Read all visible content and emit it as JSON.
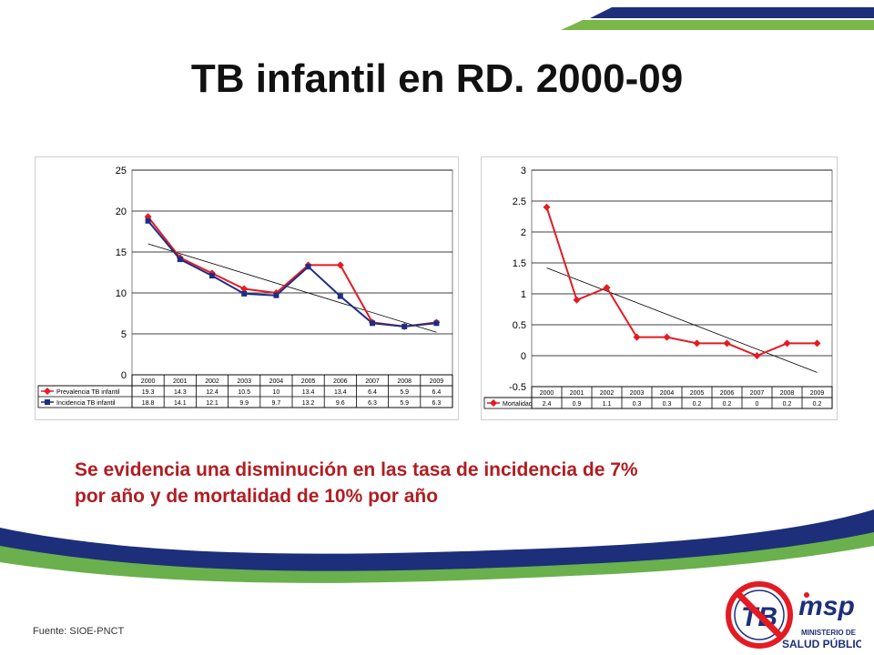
{
  "slide": {
    "title": "TB infantil en RD. 2000-09",
    "caption_line1": "Se evidencia una disminución en las tasa de incidencia de 7%",
    "caption_line2": "por año y de mortalidad de 10% por año",
    "source": "Fuente: SIOE-PNCT",
    "logo_tb_text": "TB",
    "logo_misp_text": "msp",
    "logo_ministry_line1": "MINISTERIO DE",
    "logo_ministry_line2": "SALUD PÚBLICA",
    "colors": {
      "red": "#e31b23",
      "navy": "#1f2d86",
      "caption": "#b11d21",
      "green": "#6ab04c",
      "blue": "#1a4fa0"
    }
  },
  "chart_data": [
    {
      "type": "line",
      "categories": [
        "2000",
        "2001",
        "2002",
        "2003",
        "2004",
        "2005",
        "2006",
        "2007",
        "2008",
        "2009"
      ],
      "series": [
        {
          "name": "Prevalencia TB infantil",
          "color": "#e31b23",
          "marker": "diamond",
          "values": [
            19.3,
            14.3,
            12.4,
            10.5,
            10,
            13.4,
            13.4,
            6.4,
            5.9,
            6.4
          ],
          "labels": [
            "19.3",
            "14.3",
            "12.4",
            "10.5",
            "10",
            "13.4",
            "13.4",
            "6.4",
            "5.9",
            "6.4"
          ]
        },
        {
          "name": "Incidencia TB infantil",
          "color": "#1f2d86",
          "marker": "square",
          "values": [
            18.8,
            14.1,
            12.1,
            9.9,
            9.7,
            13.2,
            9.6,
            6.3,
            5.9,
            6.3
          ],
          "labels": [
            "18.8",
            "14.1",
            "12.1",
            "9.9",
            "9.7",
            "13.2",
            "9.6",
            "6.3",
            "5.9",
            "6.3"
          ]
        }
      ],
      "trendline": {
        "start": 16.0,
        "end": 5.2
      },
      "ylim": [
        0,
        25
      ],
      "yticks": [
        0,
        5,
        10,
        15,
        20,
        25
      ],
      "ytick_labels": [
        "0",
        "5",
        "10",
        "15",
        "20",
        "25"
      ],
      "grid": true,
      "legend": "data-table"
    },
    {
      "type": "line",
      "categories": [
        "2000",
        "2001",
        "2002",
        "2003",
        "2004",
        "2005",
        "2006",
        "2007",
        "2008",
        "2009"
      ],
      "series": [
        {
          "name": "Mortalidad",
          "color": "#e31b23",
          "marker": "diamond",
          "values": [
            2.4,
            0.9,
            1.1,
            0.3,
            0.3,
            0.2,
            0.2,
            0,
            0.2,
            0.2
          ],
          "labels": [
            "2.4",
            "0.9",
            "1.1",
            "0.3",
            "0.3",
            "0.2",
            "0.2",
            "0",
            "0.2",
            "0.2"
          ]
        }
      ],
      "trendline": {
        "start": 1.42,
        "end": -0.27
      },
      "ylim": [
        -0.5,
        3
      ],
      "yticks": [
        -0.5,
        0,
        0.5,
        1,
        1.5,
        2,
        2.5,
        3
      ],
      "ytick_labels": [
        "-0.5",
        "0",
        "0.5",
        "1",
        "1.5",
        "2",
        "2.5",
        "3"
      ],
      "grid": true,
      "legend": "data-table"
    }
  ]
}
